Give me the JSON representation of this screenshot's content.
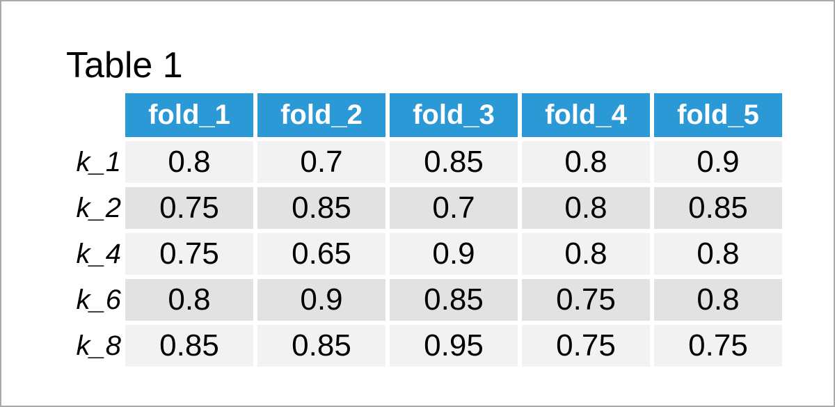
{
  "page_title": "Table 1",
  "colors": {
    "header_bg": "#2b99d6",
    "header_text": "#ffffff",
    "row_light": "#f2f2f2",
    "row_dark": "#e2e2e2",
    "frame": "#a9a9a9",
    "text": "#000000"
  },
  "chart_data": {
    "type": "table",
    "title": "Table 1",
    "columns": [
      "fold_1",
      "fold_2",
      "fold_3",
      "fold_4",
      "fold_5"
    ],
    "row_labels": [
      "k_1",
      "k_2",
      "k_4",
      "k_6",
      "k_8"
    ],
    "rows": [
      [
        "0.8",
        "0.7",
        "0.85",
        "0.8",
        "0.9"
      ],
      [
        "0.75",
        "0.85",
        "0.7",
        "0.8",
        "0.85"
      ],
      [
        "0.75",
        "0.65",
        "0.9",
        "0.8",
        "0.8"
      ],
      [
        "0.8",
        "0.9",
        "0.85",
        "0.75",
        "0.8"
      ],
      [
        "0.85",
        "0.85",
        "0.95",
        "0.75",
        "0.75"
      ]
    ]
  }
}
